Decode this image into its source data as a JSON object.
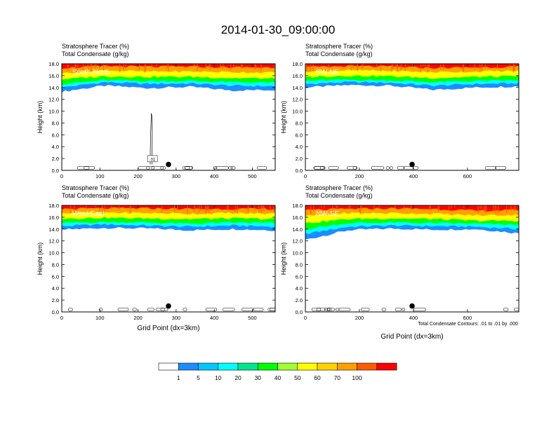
{
  "figure": {
    "title": "2014-01-30_09:00:00",
    "footnote": "Total Condensate Contours: .01 to .01 by .000"
  },
  "chart_data": [
    {
      "type": "heatmap",
      "title": "South-North",
      "left_string_1": "Stratosphere Tracer   (%)",
      "left_string_2": "Total Condensate   (g/kg)",
      "ylabel": "Height (km)",
      "xlabel": "",
      "xlim": [
        0,
        560
      ],
      "ylim": [
        0,
        18
      ],
      "xticks": [
        0,
        100,
        200,
        300,
        400,
        500
      ],
      "yticks": [
        "0.0",
        "2.0",
        "4.0",
        "6.0",
        "8.0",
        "10.0",
        "12.0",
        "14.0",
        "16.0",
        "18.0"
      ],
      "tracer_bands": [
        {
          "level": 1,
          "y": [
            13.3,
            14.3,
            13.9,
            14.1,
            13.5,
            13.6
          ]
        },
        {
          "level": 10,
          "y": [
            14.0,
            14.9,
            14.6,
            14.7,
            14.3,
            14.2
          ]
        },
        {
          "level": 30,
          "y": [
            14.6,
            15.2,
            15.1,
            15.1,
            14.9,
            14.8
          ]
        },
        {
          "level": 50,
          "y": [
            15.4,
            15.9,
            15.8,
            15.8,
            15.6,
            15.5
          ]
        },
        {
          "level": 70,
          "y": [
            16.4,
            16.9,
            16.7,
            16.7,
            16.6,
            16.5
          ]
        },
        {
          "level": 100,
          "y": [
            17.3,
            17.6,
            17.5,
            17.5,
            17.4,
            17.4
          ]
        }
      ],
      "marker": {
        "x": 280,
        "y": 1.0
      },
      "contour_label": ".01"
    },
    {
      "type": "heatmap",
      "title": "SW-NE",
      "left_string_1": "Stratosphere Tracer   (%)",
      "left_string_2": "Total Condensate   (g/kg)",
      "ylabel": "Height (km)",
      "xlabel": "",
      "xlim": [
        0,
        790
      ],
      "ylim": [
        0,
        18
      ],
      "xticks": [
        0,
        200,
        400,
        600
      ],
      "yticks": [
        "0.0",
        "2.0",
        "4.0",
        "6.0",
        "8.0",
        "10.0",
        "12.0",
        "14.0",
        "16.0",
        "18.0"
      ],
      "tracer_bands": [
        {
          "level": 1,
          "y": [
            14.0,
            14.4,
            14.3,
            13.6,
            14.0,
            14.2
          ]
        },
        {
          "level": 10,
          "y": [
            14.6,
            14.9,
            14.8,
            14.3,
            14.6,
            14.7
          ]
        },
        {
          "level": 30,
          "y": [
            15.1,
            15.3,
            15.2,
            14.9,
            15.1,
            15.2
          ]
        },
        {
          "level": 50,
          "y": [
            15.8,
            16.0,
            15.9,
            15.6,
            15.8,
            15.9
          ]
        },
        {
          "level": 70,
          "y": [
            16.7,
            16.9,
            16.8,
            16.6,
            16.7,
            16.8
          ]
        },
        {
          "level": 100,
          "y": [
            17.4,
            17.6,
            17.5,
            17.3,
            17.4,
            17.5
          ]
        }
      ],
      "marker": {
        "x": 395,
        "y": 1.0
      }
    },
    {
      "type": "heatmap",
      "title": "West-East",
      "left_string_1": "Stratosphere Tracer   (%)",
      "left_string_2": "Total Condensate   (g/kg)",
      "ylabel": "Height (km)",
      "xlabel": "Grid Point (dx=3km)",
      "xlim": [
        0,
        560
      ],
      "ylim": [
        0,
        18
      ],
      "xticks": [
        0,
        100,
        200,
        300,
        400,
        500
      ],
      "yticks": [
        "0.0",
        "2.0",
        "4.0",
        "6.0",
        "8.0",
        "10.0",
        "12.0",
        "14.0",
        "16.0",
        "18.0"
      ],
      "tracer_bands": [
        {
          "level": 1,
          "y": [
            13.9,
            14.2,
            14.1,
            13.8,
            14.0,
            13.8
          ]
        },
        {
          "level": 10,
          "y": [
            14.5,
            14.8,
            14.6,
            14.4,
            14.6,
            14.4
          ]
        },
        {
          "level": 30,
          "y": [
            15.0,
            15.2,
            15.1,
            14.9,
            15.1,
            15.0
          ]
        },
        {
          "level": 50,
          "y": [
            15.8,
            15.9,
            15.8,
            15.7,
            15.8,
            15.7
          ]
        },
        {
          "level": 70,
          "y": [
            16.7,
            16.8,
            16.7,
            16.6,
            16.7,
            16.6
          ]
        },
        {
          "level": 100,
          "y": [
            17.4,
            17.5,
            17.5,
            17.4,
            17.4,
            17.4
          ]
        }
      ],
      "marker": {
        "x": 280,
        "y": 1.0
      }
    },
    {
      "type": "heatmap",
      "title": "NW-SE",
      "left_string_1": "Stratosphere Tracer   (%)",
      "left_string_2": "Total Condensate   (g/kg)",
      "ylabel": "Height (km)",
      "xlabel": "Grid Point (dx=3km)",
      "xlim": [
        0,
        790
      ],
      "ylim": [
        0,
        18
      ],
      "xticks": [
        0,
        200,
        400,
        600
      ],
      "yticks": [
        "0.0",
        "2.0",
        "4.0",
        "6.0",
        "8.0",
        "10.0",
        "12.0",
        "14.0",
        "16.0",
        "18.0"
      ],
      "tracer_bands": [
        {
          "level": 1,
          "y": [
            12.2,
            13.8,
            14.1,
            13.9,
            14.0,
            13.3
          ]
        },
        {
          "level": 10,
          "y": [
            13.2,
            14.4,
            14.6,
            14.5,
            14.4,
            14.0
          ]
        },
        {
          "level": 30,
          "y": [
            14.0,
            15.0,
            15.1,
            15.0,
            14.9,
            14.7
          ]
        },
        {
          "level": 50,
          "y": [
            15.0,
            15.7,
            15.8,
            15.7,
            15.4,
            15.4
          ]
        },
        {
          "level": 70,
          "y": [
            16.2,
            16.7,
            16.7,
            16.6,
            16.3,
            16.4
          ]
        },
        {
          "level": 100,
          "y": [
            17.2,
            17.4,
            17.5,
            17.4,
            17.1,
            17.2
          ]
        }
      ],
      "marker": {
        "x": 395,
        "y": 1.0
      }
    }
  ],
  "colorbar": {
    "labels": [
      "1",
      "5",
      "10",
      "20",
      "30",
      "40",
      "50",
      "60",
      "70",
      "100"
    ],
    "colors": [
      "#ffffff",
      "#1e8cff",
      "#00c8ff",
      "#00ffff",
      "#00e68c",
      "#00ff00",
      "#a0ff32",
      "#ffff00",
      "#ffd200",
      "#ffa000",
      "#ff5a00",
      "#ff0000"
    ]
  },
  "colors": {
    "ranges": [
      "#1e8cff",
      "#00c8ff",
      "#00ffff",
      "#00e68c",
      "#00ff00",
      "#a0ff32",
      "#ffff00",
      "#ffd200",
      "#ffa000",
      "#ff5a00",
      "#ff0000"
    ],
    "contour": "#000000"
  }
}
